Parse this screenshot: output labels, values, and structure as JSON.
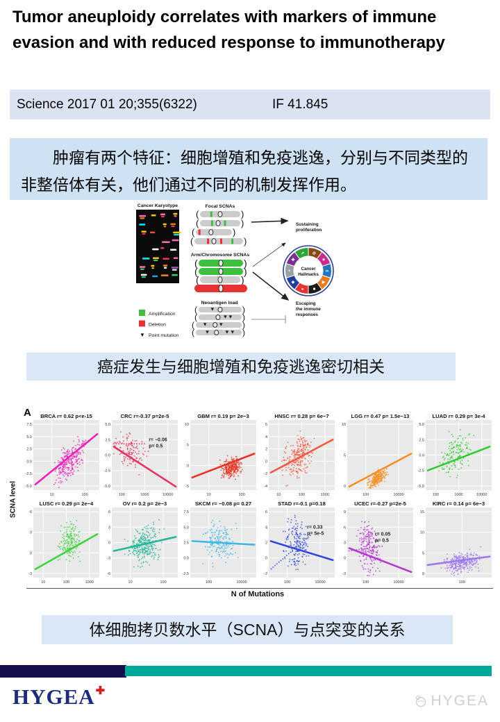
{
  "title": "Tumor aneuploidy correlates with markers of immune evasion and with reduced response to immunotherapy",
  "citation": {
    "journal": "Science 2017 01 20;355(6322)",
    "impact_factor": "IF 41.845"
  },
  "summary": "肿瘤有两个特征：细胞增殖和免疫逃逸，分别与不同类型的非整倍体有关，他们通过不同的机制发挥作用。",
  "caption1": "癌症发生与细胞增殖和免疫逃逸密切相关",
  "caption2": "体细胞拷贝数水平（SCNA）与点突变的关系",
  "diagram": {
    "karyotype_label": "Cancer Karyotype",
    "focal_label": "Focal SCNAs",
    "arm_label": "Arm/Chromosome SCNAs",
    "neoantigen_label": "Neoantigen load",
    "sustaining_lines": [
      "Sustaining",
      "proliferation"
    ],
    "escaping_lines": [
      "Escaping",
      "the immune",
      "responses"
    ],
    "hallmarks_lines": [
      "Cancer",
      "Hallmarks"
    ],
    "legend": [
      {
        "label": "Amplification",
        "color": "#3fbf3f"
      },
      {
        "label": "Deletion",
        "color": "#e63232"
      },
      {
        "label": "Point mutation",
        "symbol": "▼"
      }
    ],
    "amplification_color": "#3fbf3f",
    "deletion_color": "#e63232",
    "neutral_color": "#cccccc",
    "wheel_colors": [
      "#8a4a16",
      "#cc2b8e",
      "#2277bb",
      "#e87a22",
      "#1a1a1a",
      "#e63232",
      "#1f3e9e",
      "#9aa0a6",
      "#7a2f94",
      "#2aa53a"
    ],
    "wheel_icons": [
      "⊘",
      "✶",
      "∞",
      "▶",
      "■",
      "●",
      "◆",
      "+",
      "✚",
      "↗"
    ]
  },
  "chart_data": {
    "type": "scatter",
    "panel_label": "A",
    "xlabel": "N of Mutations",
    "ylabel": "SCNA level",
    "x_scale": "log",
    "panels": [
      {
        "label": "BRCA",
        "stats": "r= 0.62 p<e-15",
        "r": 0.62,
        "color": "#ee22bb",
        "yticks": [
          "7.5",
          "5.0",
          "2.5",
          "0.0",
          "-2.5",
          "-5.0"
        ],
        "xticks": [
          "10",
          "100"
        ],
        "line": [
          0.08,
          0.8
        ],
        "cloud": {
          "cx": 0.55,
          "cy": 0.42,
          "sx": 0.2,
          "sy": 0.2
        },
        "n": 260
      },
      {
        "label": "CRC",
        "stats": "r=-0.37 p=2e-5",
        "r": -0.37,
        "color": "#e73360",
        "yticks": [
          "5.0",
          "2.5",
          "0.0",
          "-2.5",
          "-5.0"
        ],
        "xticks": [
          "100",
          "1000",
          "10000"
        ],
        "line": [
          0.62,
          0.05
        ],
        "cloud": {
          "cx": 0.28,
          "cy": 0.55,
          "sx": 0.2,
          "sy": 0.22
        },
        "n": 120,
        "annotation": {
          "lines": [
            "r= −0.06",
            "p= 0.5"
          ],
          "x": 0.56,
          "y": 0.3,
          "dash": [
            0.02,
            0.34,
            0.52,
            0.34
          ]
        }
      },
      {
        "label": "GBM",
        "stats": "r= 0.19 p= 2e−3",
        "r": 0.19,
        "color": "#e93322",
        "yticks": [
          "10",
          "5",
          "0",
          "-5"
        ],
        "xticks": [
          "10",
          "100"
        ],
        "line": [
          0.18,
          0.52
        ],
        "cloud": {
          "cx": 0.62,
          "cy": 0.32,
          "sx": 0.13,
          "sy": 0.12
        },
        "n": 260
      },
      {
        "label": "HNSC",
        "stats": "r= 0.28 p= 6e−7",
        "r": 0.28,
        "color": "#f25a40",
        "yticks": [
          "6",
          "4",
          "2",
          "0",
          "-2",
          "-4"
        ],
        "xticks": [
          "10",
          "100",
          "1000"
        ],
        "line": [
          0.25,
          0.72
        ],
        "cloud": {
          "cx": 0.45,
          "cy": 0.5,
          "sx": 0.18,
          "sy": 0.26
        },
        "n": 230
      },
      {
        "label": "LGG",
        "stats": "r= 0.47 p= 1.5e−13",
        "r": 0.47,
        "color": "#f39022",
        "yticks": [
          "10",
          "5",
          "0"
        ],
        "xticks": [
          "100",
          "10000"
        ],
        "line": [
          0.05,
          0.52
        ],
        "cloud": {
          "cx": 0.45,
          "cy": 0.16,
          "sx": 0.12,
          "sy": 0.1
        },
        "n": 240
      },
      {
        "label": "LUAD",
        "stats": "r= 0.29 p= 3e-4",
        "r": 0.29,
        "color": "#33cc33",
        "yticks": [
          "5.0",
          "2.5",
          "0.0",
          "-2.5",
          "-5.0"
        ],
        "xticks": [
          "100",
          "1000",
          "10000"
        ],
        "line": [
          0.28,
          0.62
        ],
        "cloud": {
          "cx": 0.45,
          "cy": 0.52,
          "sx": 0.2,
          "sy": 0.24
        },
        "n": 150
      },
      {
        "label": "LUSC",
        "stats": "r= 0.29 p= 2e−4",
        "r": 0.29,
        "color": "#3fd43f",
        "yticks": [
          "6",
          "3",
          "0",
          "-3"
        ],
        "xticks": [
          "10",
          "100",
          "1000"
        ],
        "line": [
          0.12,
          0.62
        ],
        "cloud": {
          "cx": 0.55,
          "cy": 0.5,
          "sx": 0.14,
          "sy": 0.26
        },
        "n": 170
      },
      {
        "label": "OV",
        "stats": "r= 0.2 p= 2e−3",
        "r": 0.2,
        "color": "#23b898",
        "yticks": [
          "6",
          "3",
          "0",
          "-3",
          "-6"
        ],
        "xticks": [
          "10",
          "100"
        ],
        "line": [
          0.38,
          0.58
        ],
        "cloud": {
          "cx": 0.5,
          "cy": 0.46,
          "sx": 0.21,
          "sy": 0.24
        },
        "n": 280
      },
      {
        "label": "SKCM",
        "stats": "r= −0.08 p= 0.27",
        "r": -0.08,
        "color": "#41b6e8",
        "yticks": [
          "7.5",
          "5.0",
          "2.5",
          "0.0",
          "-2.5"
        ],
        "xticks": [
          "100",
          "10000"
        ],
        "line": [
          0.52,
          0.47
        ],
        "cloud": {
          "cx": 0.45,
          "cy": 0.48,
          "sx": 0.2,
          "sy": 0.24
        },
        "n": 170
      },
      {
        "label": "STAD",
        "stats": "r=-0.1 p=0.18",
        "r": -0.1,
        "color": "#3346e0",
        "yticks": [
          "6",
          "4",
          "2",
          "0",
          "-2"
        ],
        "xticks": [
          "100",
          "10000"
        ],
        "line": [
          0.52,
          0.25
        ],
        "cloud": {
          "cx": 0.42,
          "cy": 0.5,
          "sx": 0.16,
          "sy": 0.3
        },
        "n": 170,
        "annotation": {
          "lines": [
            "r= 0.33",
            "p= 5e-5"
          ],
          "x": 0.58,
          "y": 0.3,
          "dash": [
            0.03,
            0.88,
            0.65,
            0.38
          ]
        }
      },
      {
        "label": "UCEC",
        "stats": "r=-0.27 p=2e-5",
        "r": -0.27,
        "color": "#b63ad1",
        "yticks": [
          "9",
          "6",
          "3",
          "0",
          "-3"
        ],
        "xticks": [
          "100",
          "10000"
        ],
        "line": [
          0.42,
          0.08
        ],
        "cloud": {
          "cx": 0.33,
          "cy": 0.42,
          "sx": 0.14,
          "sy": 0.3
        },
        "n": 220,
        "annotation": {
          "lines": [
            "r= 0.05",
            "p= 0.5"
          ],
          "x": 0.42,
          "y": 0.4,
          "dash": [
            0.02,
            0.62,
            0.55,
            0.55
          ]
        }
      },
      {
        "label": "KIRC",
        "stats": "r= 0.14 p= 6e−3",
        "r": 0.14,
        "color": "#9d79ec",
        "yticks": [
          "15",
          "10",
          "5",
          "0"
        ],
        "xticks": [
          "100"
        ],
        "line": [
          0.18,
          0.3
        ],
        "cloud": {
          "cx": 0.55,
          "cy": 0.22,
          "sx": 0.22,
          "sy": 0.12
        },
        "n": 300
      }
    ]
  },
  "footer": {
    "logo": "HYGEA",
    "logo_plus": "✚",
    "watermark": "HYGEA"
  }
}
